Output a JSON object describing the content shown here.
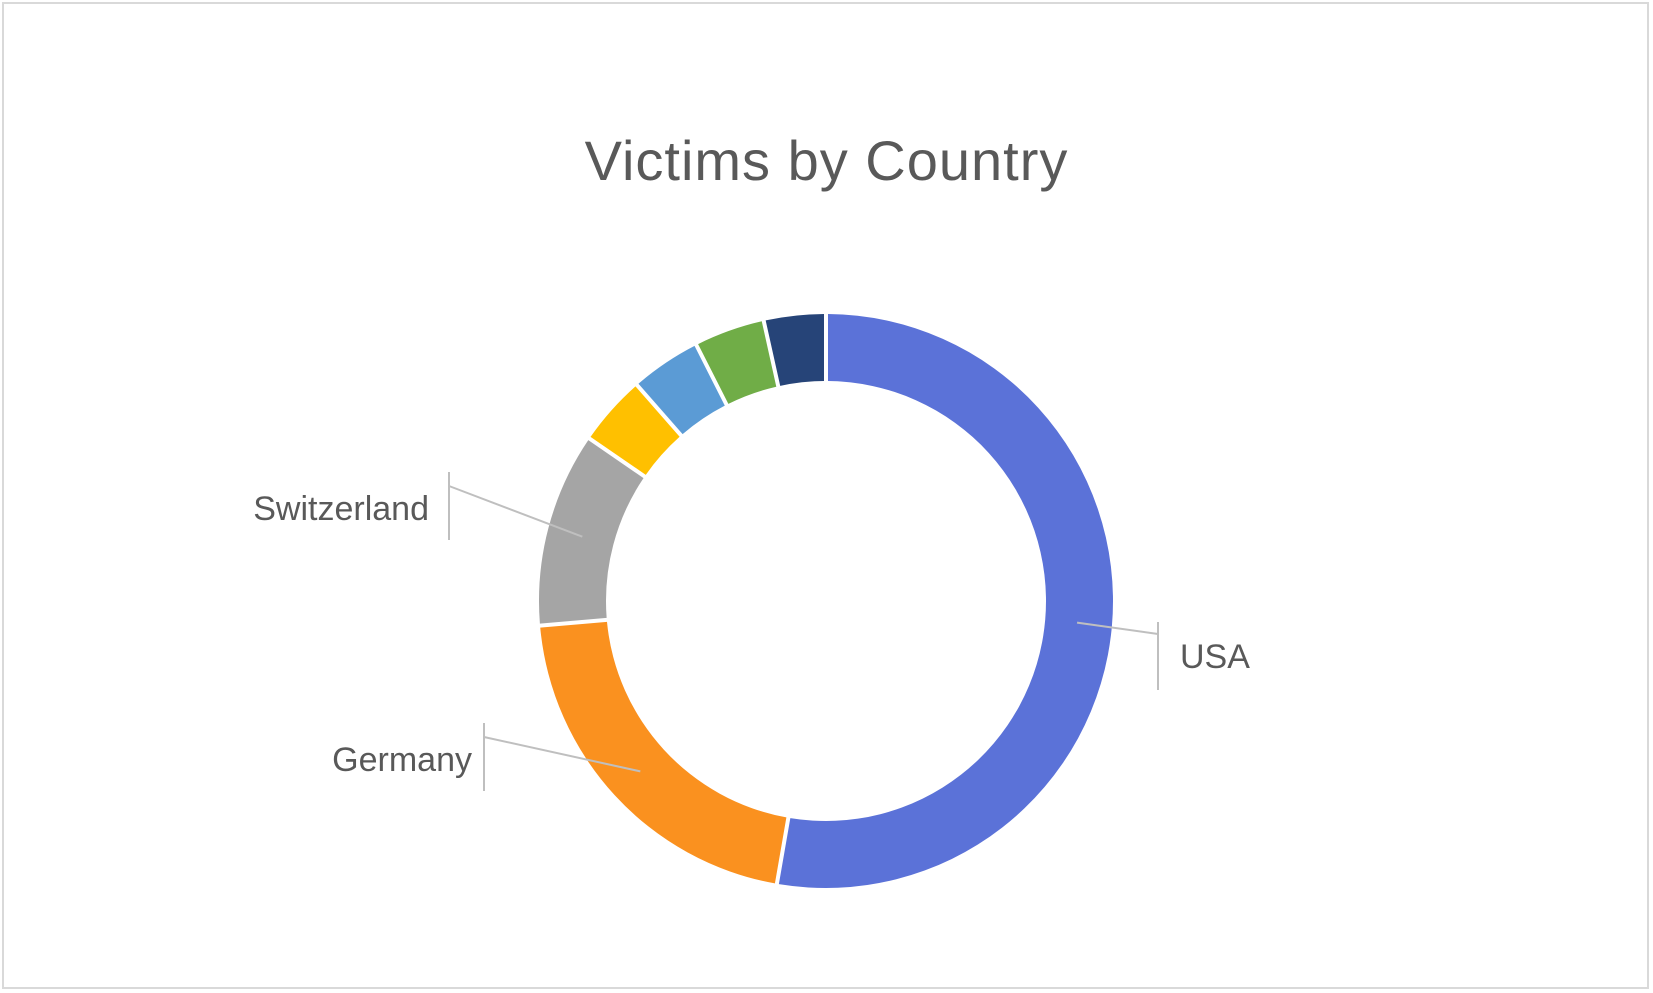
{
  "chart_data": {
    "type": "pie",
    "subtype": "doughnut",
    "title": "Victims by Country",
    "legend": "none",
    "slices": [
      {
        "label": "USA",
        "value": 53,
        "color": "#5B72D8",
        "label_shown": true
      },
      {
        "label": "Germany",
        "value": 21,
        "color": "#FA911F",
        "label_shown": true
      },
      {
        "label": "Switzerland",
        "value": 11,
        "color": "#A5A5A5",
        "label_shown": true
      },
      {
        "label": "",
        "value": 4,
        "color": "#FFC000",
        "label_shown": false
      },
      {
        "label": "",
        "value": 4,
        "color": "#5B9BD5",
        "label_shown": false
      },
      {
        "label": "",
        "value": 4,
        "color": "#70AD47",
        "label_shown": false
      },
      {
        "label": "",
        "value": 3.5,
        "color": "#264478",
        "label_shown": false
      }
    ],
    "leader_line_color": "#BFBFBF"
  }
}
